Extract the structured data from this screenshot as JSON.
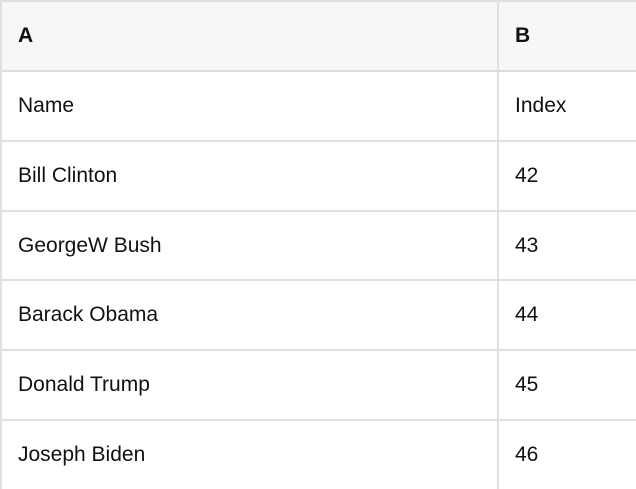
{
  "table": {
    "column_headers": [
      "A",
      "B"
    ],
    "rows": [
      [
        "Name",
        "Index"
      ],
      [
        "Bill Clinton",
        "42"
      ],
      [
        "GeorgeW Bush",
        "43"
      ],
      [
        "Barack Obama",
        "44"
      ],
      [
        "Donald Trump",
        "45"
      ],
      [
        "Joseph Biden",
        "46"
      ]
    ]
  },
  "colors": {
    "page-bg": "#ffffff",
    "row-bg": "#ffffff",
    "header-bg": "#f7f7f7",
    "border": "#e0e0e0",
    "header-border": "#dcdcdc",
    "text": "#111111"
  }
}
